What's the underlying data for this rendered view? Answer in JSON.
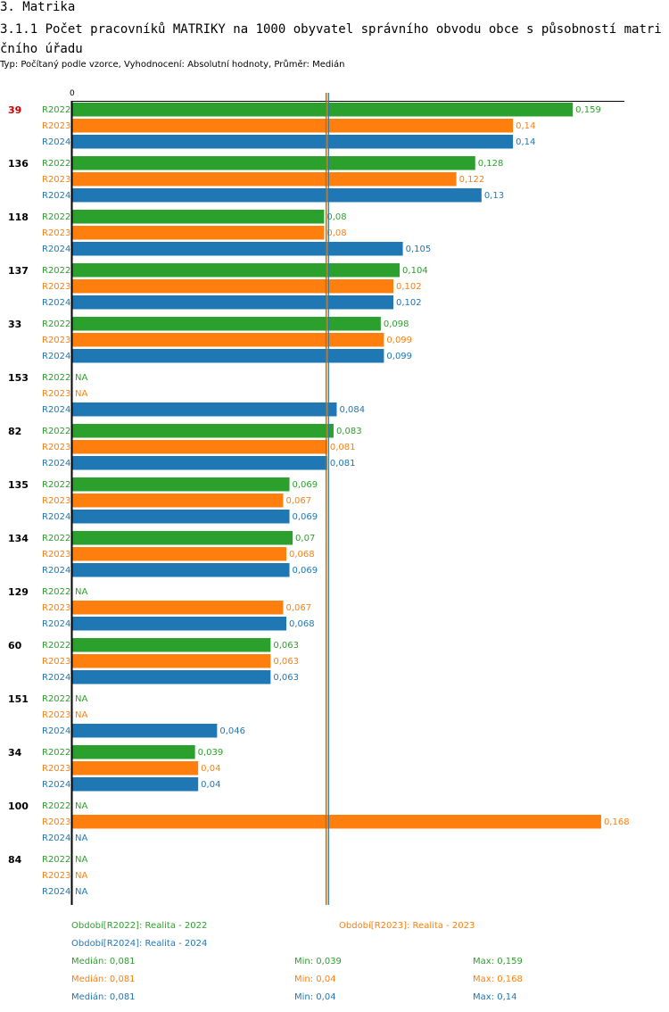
{
  "page": {
    "section_title": "3. Matrika",
    "chart_title": "3.1.1 Počet pracovníků MATRIKY na 1000 obyvatel správního obvodu obce s působností matričního úřadu",
    "subtitle": "Typ: Počítaný podle vzorce, Vyhodnocení: Absolutní hodnoty, Průměr: Medián"
  },
  "colors": {
    "R2022": "#2ca02c",
    "R2023": "#ff7f0e",
    "R2024": "#1f77b4",
    "highlight": "#cc0000",
    "axis": "#000000"
  },
  "chart_data": {
    "type": "bar",
    "orientation": "horizontal",
    "xlim": [
      0,
      0.17
    ],
    "axis_zero_label": "0",
    "na_label": "NA",
    "median_lines": [
      0.081,
      0.081,
      0.081
    ],
    "series_names": [
      "R2022",
      "R2023",
      "R2024"
    ],
    "categories": [
      "39",
      "136",
      "118",
      "137",
      "33",
      "153",
      "82",
      "135",
      "134",
      "129",
      "60",
      "151",
      "34",
      "100",
      "84"
    ],
    "highlight_category": "39",
    "series": [
      {
        "name": "R2022",
        "values": [
          0.159,
          0.128,
          0.08,
          0.104,
          0.098,
          null,
          0.083,
          0.069,
          0.07,
          null,
          0.063,
          null,
          0.039,
          null,
          null
        ],
        "labels": [
          "0,159",
          "0,128",
          "0,08",
          "0,104",
          "0,098",
          "NA",
          "0,083",
          "0,069",
          "0,07",
          "NA",
          "0,063",
          "NA",
          "0,039",
          "NA",
          "NA"
        ]
      },
      {
        "name": "R2023",
        "values": [
          0.14,
          0.122,
          0.08,
          0.102,
          0.099,
          null,
          0.081,
          0.067,
          0.068,
          0.067,
          0.063,
          null,
          0.04,
          0.168,
          null
        ],
        "labels": [
          "0,14",
          "0,122",
          "0,08",
          "0,102",
          "0,099",
          "NA",
          "0,081",
          "0,067",
          "0,068",
          "0,067",
          "0,063",
          "NA",
          "0,04",
          "0,168",
          "NA"
        ]
      },
      {
        "name": "R2024",
        "values": [
          0.14,
          0.13,
          0.105,
          0.102,
          0.099,
          0.084,
          0.081,
          0.069,
          0.069,
          0.068,
          0.063,
          0.046,
          0.04,
          null,
          null
        ],
        "labels": [
          "0,14",
          "0,13",
          "0,105",
          "0,102",
          "0,099",
          "0,084",
          "0,081",
          "0,069",
          "0,069",
          "0,068",
          "0,063",
          "0,046",
          "0,04",
          "NA",
          "NA"
        ]
      }
    ],
    "legend": [
      {
        "series": "R2022",
        "text": "Období[R2022]: Realita - 2022"
      },
      {
        "series": "R2023",
        "text": "Období[R2023]: Realita - 2023"
      },
      {
        "series": "R2024",
        "text": "Období[R2024]: Realita - 2024"
      }
    ],
    "stats": [
      {
        "series": "R2022",
        "median": "Medián: 0,081",
        "min": "Min: 0,039",
        "max": "Max: 0,159"
      },
      {
        "series": "R2023",
        "median": "Medián: 0,081",
        "min": "Min: 0,04",
        "max": "Max: 0,168"
      },
      {
        "series": "R2024",
        "median": "Medián: 0,081",
        "min": "Min: 0,04",
        "max": "Max: 0,14"
      }
    ]
  }
}
